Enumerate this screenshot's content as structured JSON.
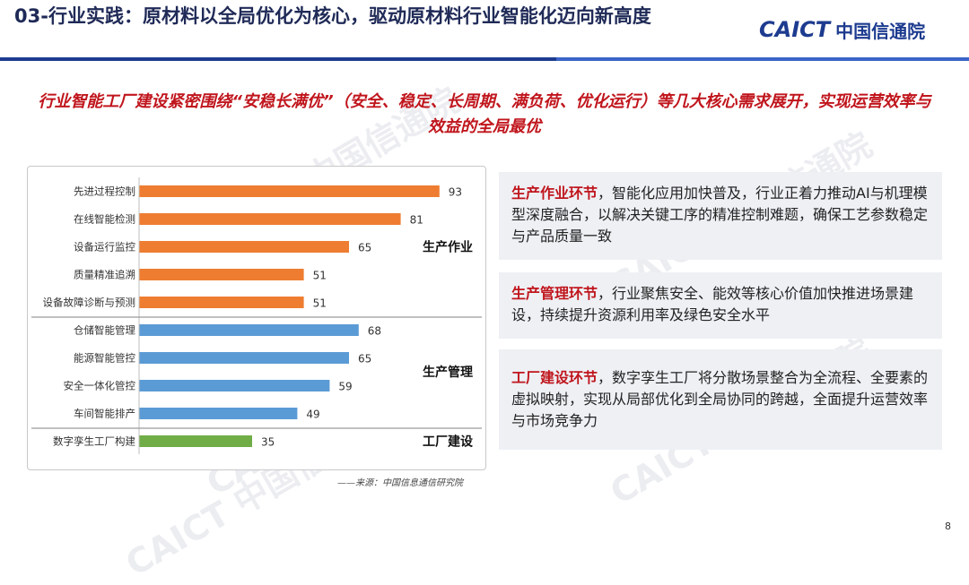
{
  "header": {
    "title": "03-行业实践：原材料以全局优化为核心，驱动原材料行业智能化迈向新高度",
    "logo_en": "CAICT",
    "logo_cn": "中国信通院"
  },
  "subtitle": "行业智能工厂建设紧密围绕“安稳长满优”（安全、稳定、长周期、满负荷、优化运行）等几大核心需求展开，实现运营效率与效益的全局最优",
  "watermark": "CAICT 中国信通院",
  "colors": {
    "production": "#ee7d31",
    "management": "#5b9bd5",
    "factory": "#70ad47",
    "accent_red": "#c0151c",
    "brand_blue": "#1d3b8f"
  },
  "chart_data": {
    "type": "bar",
    "orientation": "horizontal",
    "categories": [
      "先进过程控制",
      "在线智能检测",
      "设备运行监控",
      "质量精准追溯",
      "设备故障诊断与预测",
      "仓储智能管理",
      "能源智能管控",
      "安全一体化管控",
      "车间智能排产",
      "数字孪生工厂构建"
    ],
    "values": [
      93,
      81,
      65,
      51,
      51,
      68,
      65,
      59,
      49,
      35
    ],
    "groups": [
      {
        "name": "生产作业",
        "start": 0,
        "end": 4,
        "color_key": "production"
      },
      {
        "name": "生产管理",
        "start": 5,
        "end": 8,
        "color_key": "management"
      },
      {
        "name": "工厂建设",
        "start": 9,
        "end": 9,
        "color_key": "factory"
      }
    ],
    "xlim": [
      0,
      100
    ],
    "grid": false,
    "source": "——来源：中国信息通信研究院"
  },
  "cards": [
    {
      "head": "生产作业环节",
      "body": "，智能化应用加快普及，行业正着力推动AI与机理模型深度融合，以解决关键工序的精准控制难题，确保工艺参数稳定与产品质量一致"
    },
    {
      "head": "生产管理环节",
      "body": "，行业聚焦安全、能效等核心价值加快推进场景建设，持续提升资源利用率及绿色安全水平"
    },
    {
      "head": "工厂建设环节",
      "body": "，数字孪生工厂将分散场景整合为全流程、全要素的虚拟映射，实现从局部优化到全局协同的跨越，全面提升运营效率与市场竞争力"
    }
  ],
  "page_number": "8"
}
